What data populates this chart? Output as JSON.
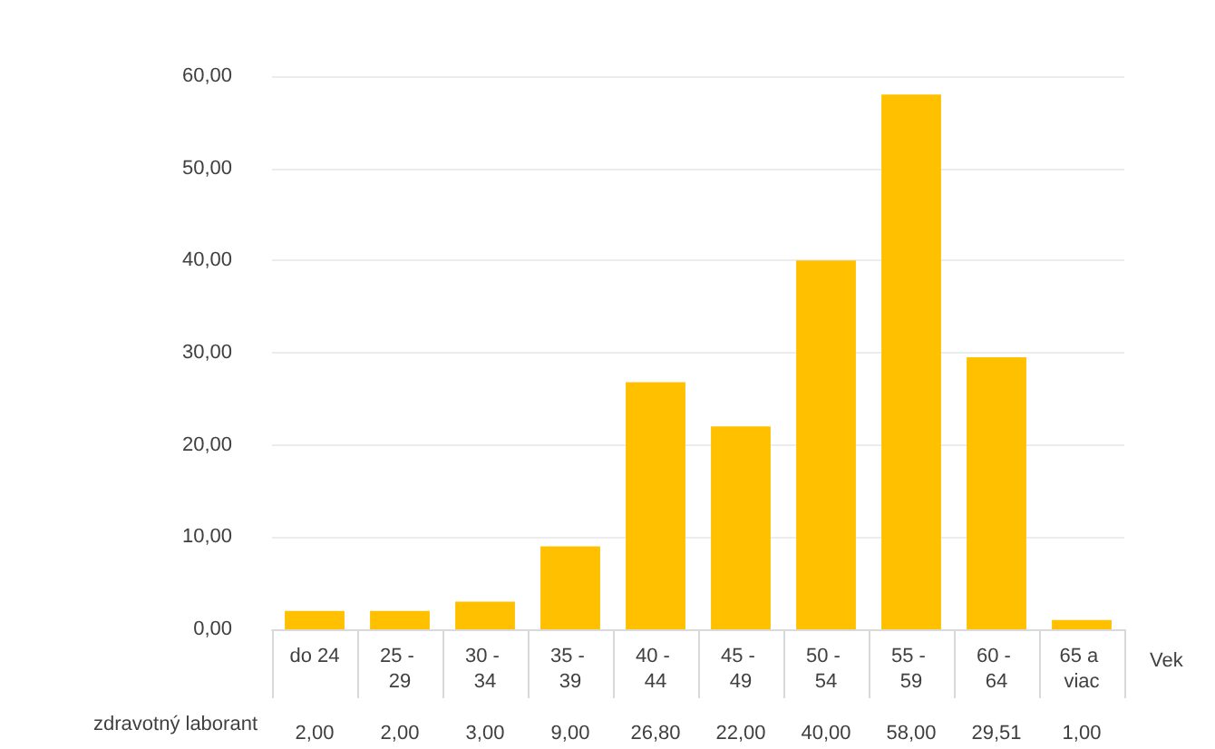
{
  "chart_data": {
    "type": "bar",
    "xlabel": "Vek",
    "categories": [
      "do 24",
      "25 - 29",
      "30 - 34",
      "35 - 39",
      "40 - 44",
      "45 - 49",
      "50 - 54",
      "55 - 59",
      "60 - 64",
      "65 a viac"
    ],
    "series": [
      {
        "name": "zdravotný laborant",
        "color": "#ffc000",
        "values": [
          2.0,
          2.0,
          3.0,
          9.0,
          26.8,
          22.0,
          40.0,
          58.0,
          29.51,
          1.0
        ],
        "value_labels": [
          "2,00",
          "2,00",
          "3,00",
          "9,00",
          "26,80",
          "22,00",
          "40,00",
          "58,00",
          "29,51",
          "1,00"
        ]
      }
    ],
    "ylim": [
      0,
      60
    ],
    "yticks": [
      {
        "value": 0,
        "label": "0,00"
      },
      {
        "value": 10,
        "label": "10,00"
      },
      {
        "value": 20,
        "label": "20,00"
      },
      {
        "value": 30,
        "label": "30,00"
      },
      {
        "value": 40,
        "label": "40,00"
      },
      {
        "value": 50,
        "label": "50,00"
      },
      {
        "value": 60,
        "label": "60,00"
      }
    ],
    "grid": "y",
    "legend": false
  }
}
